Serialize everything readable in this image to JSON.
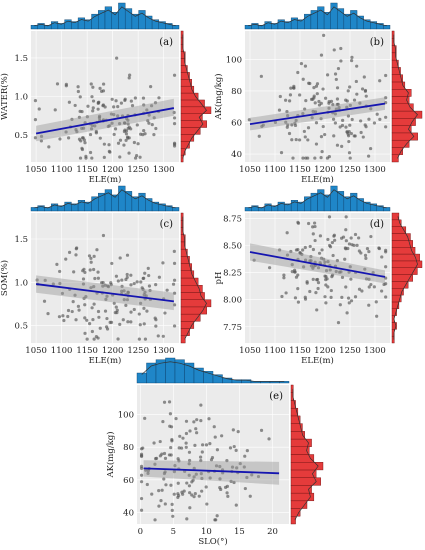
{
  "chart_data": [
    {
      "type": "scatter",
      "panel_label": "(a)",
      "xlabel": "ELE(m)",
      "ylabel": "WATER(%)",
      "xlim": [
        1040,
        1330
      ],
      "ylim": [
        0.15,
        1.85
      ],
      "xticks": [
        1050,
        1100,
        1150,
        1200,
        1250,
        1300
      ],
      "yticks": [
        0.5,
        1.0,
        1.5
      ],
      "ytick_labels": [
        "0.5",
        "1.0",
        "1.5"
      ],
      "fit": {
        "x": [
          1050,
          1320
        ],
        "y": [
          0.52,
          0.85
        ],
        "ci_low": [
          0.42,
          0.75
        ],
        "ci_high": [
          0.62,
          0.97
        ]
      },
      "scatter": {
        "cx": 1195,
        "cy": 0.68,
        "sx": 60,
        "sy": 0.3,
        "n": 160,
        "seed": 11
      },
      "top_hist": [
        2,
        3,
        2,
        4,
        3,
        5,
        4,
        6,
        5,
        8,
        10,
        12,
        9,
        14,
        11,
        8,
        10,
        7,
        5,
        4,
        3,
        2
      ],
      "side_hist": [
        1,
        2,
        4,
        6,
        9,
        12,
        10,
        14,
        11,
        8,
        6,
        5,
        4,
        3,
        2,
        2,
        1,
        1,
        1
      ]
    },
    {
      "type": "scatter",
      "panel_label": "(b)",
      "xlabel": "ELE(m)",
      "ylabel": "AK(mg/kg)",
      "xlim": [
        1040,
        1330
      ],
      "ylim": [
        35,
        118
      ],
      "xticks": [
        1050,
        1100,
        1150,
        1200,
        1250,
        1300
      ],
      "yticks": [
        40,
        60,
        80,
        100
      ],
      "ytick_labels": [
        "40",
        "60",
        "80",
        "100"
      ],
      "fit": {
        "x": [
          1050,
          1320
        ],
        "y": [
          59,
          72
        ],
        "ci_low": [
          55,
          68
        ],
        "ci_high": [
          63,
          76
        ]
      },
      "scatter": {
        "cx": 1200,
        "cy": 66,
        "sx": 60,
        "sy": 16,
        "n": 160,
        "seed": 23
      },
      "top_hist": [
        2,
        3,
        2,
        4,
        3,
        5,
        4,
        6,
        5,
        8,
        10,
        12,
        9,
        14,
        11,
        8,
        10,
        7,
        5,
        4,
        3,
        2
      ],
      "side_hist": [
        3,
        5,
        8,
        12,
        9,
        11,
        14,
        10,
        8,
        9,
        6,
        5,
        4,
        3,
        2,
        2,
        1,
        1
      ]
    },
    {
      "type": "scatter",
      "panel_label": "(c)",
      "xlabel": "ELE(m)",
      "ylabel": "SOM(%)",
      "xlim": [
        1040,
        1330
      ],
      "ylim": [
        0.3,
        1.8
      ],
      "xticks": [
        1050,
        1100,
        1150,
        1200,
        1250,
        1300
      ],
      "yticks": [
        0.5,
        1.0,
        1.5
      ],
      "ytick_labels": [
        "0.5",
        "1.0",
        "1.5"
      ],
      "fit": {
        "x": [
          1050,
          1320
        ],
        "y": [
          0.98,
          0.78
        ],
        "ci_low": [
          0.88,
          0.68
        ],
        "ci_high": [
          1.08,
          0.88
        ]
      },
      "scatter": {
        "cx": 1195,
        "cy": 0.86,
        "sx": 60,
        "sy": 0.28,
        "n": 160,
        "seed": 37
      },
      "top_hist": [
        2,
        3,
        2,
        4,
        3,
        5,
        4,
        6,
        5,
        8,
        10,
        12,
        9,
        14,
        11,
        8,
        10,
        7,
        5,
        4,
        3,
        2
      ],
      "side_hist": [
        2,
        4,
        6,
        9,
        12,
        14,
        11,
        10,
        8,
        6,
        5,
        4,
        3,
        2,
        2,
        1,
        1,
        1
      ]
    },
    {
      "type": "scatter",
      "panel_label": "(d)",
      "xlabel": "ELE(m)",
      "ylabel": "pH",
      "xlim": [
        1040,
        1330
      ],
      "ylim": [
        7.6,
        8.8
      ],
      "xticks": [
        1050,
        1100,
        1150,
        1200,
        1250,
        1300
      ],
      "yticks": [
        7.75,
        8.0,
        8.25,
        8.5,
        8.75
      ],
      "ytick_labels": [
        "7.75",
        "8.00",
        "8.25",
        "8.50",
        "8.75"
      ],
      "fit": {
        "x": [
          1050,
          1320
        ],
        "y": [
          8.44,
          8.21
        ],
        "ci_low": [
          8.36,
          8.15
        ],
        "ci_high": [
          8.52,
          8.27
        ]
      },
      "scatter": {
        "cx": 1210,
        "cy": 8.3,
        "sx": 60,
        "sy": 0.22,
        "n": 160,
        "seed": 51
      },
      "top_hist": [
        2,
        3,
        2,
        4,
        3,
        5,
        4,
        6,
        5,
        8,
        10,
        12,
        9,
        14,
        11,
        8,
        10,
        7,
        5,
        4,
        3,
        2
      ],
      "side_hist": [
        1,
        1,
        2,
        1,
        2,
        3,
        4,
        5,
        7,
        9,
        11,
        13,
        12,
        10,
        9,
        8,
        6,
        4,
        3
      ]
    },
    {
      "type": "scatter",
      "panel_label": "(e)",
      "xlabel": "SLO(°)",
      "ylabel": "AK(mg/kg)",
      "xlim": [
        -0.5,
        22.5
      ],
      "ylim": [
        33,
        118
      ],
      "xticks": [
        0,
        5,
        10,
        15,
        20
      ],
      "yticks": [
        40,
        60,
        80,
        100
      ],
      "ytick_labels": [
        "40",
        "60",
        "80",
        "100"
      ],
      "fit": {
        "x": [
          0.5,
          21
        ],
        "y": [
          67,
          64
        ],
        "ci_low": [
          62,
          57
        ],
        "ci_high": [
          72,
          71
        ]
      },
      "scatter": {
        "cx": 7,
        "cy": 65,
        "sx": 4.5,
        "sy": 16,
        "n": 160,
        "seed": 67
      },
      "top_hist": [
        6,
        12,
        14,
        15,
        14,
        12,
        9,
        7,
        5,
        3,
        2,
        2,
        1,
        1,
        1,
        1
      ],
      "side_hist": [
        2,
        4,
        7,
        10,
        9,
        13,
        11,
        14,
        10,
        8,
        9,
        6,
        5,
        4,
        3,
        2,
        1,
        1
      ]
    }
  ]
}
